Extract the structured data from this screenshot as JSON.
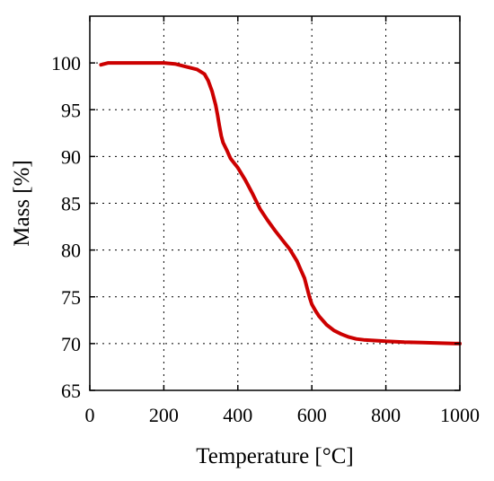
{
  "chart_data": {
    "type": "line",
    "xlabel": "Temperature [°C]",
    "ylabel": "Mass [%]",
    "xlim": [
      0,
      1000
    ],
    "ylim": [
      65,
      105
    ],
    "xticks": [
      0,
      200,
      400,
      600,
      800,
      1000
    ],
    "yticks": [
      65,
      70,
      75,
      80,
      85,
      90,
      95,
      100
    ],
    "grid": true,
    "colors": {
      "series": "#cc0000"
    },
    "series": [
      {
        "x": [
          30,
          50,
          100,
          150,
          200,
          230,
          260,
          290,
          310,
          320,
          330,
          340,
          345,
          350,
          355,
          360,
          370,
          380,
          390,
          400,
          420,
          440,
          460,
          480,
          500,
          520,
          540,
          560,
          570,
          580,
          590,
          595,
          600,
          610,
          620,
          640,
          660,
          680,
          700,
          720,
          740,
          760,
          780,
          800,
          850,
          900,
          950,
          1000
        ],
        "y": [
          99.8,
          100,
          100,
          100,
          100,
          99.9,
          99.6,
          99.3,
          98.8,
          98.1,
          97,
          95.5,
          94.5,
          93.3,
          92.2,
          91.5,
          90.7,
          89.8,
          89.3,
          88.8,
          87.5,
          86,
          84.4,
          83.2,
          82.1,
          81.1,
          80.1,
          78.8,
          77.9,
          77,
          75.5,
          74.8,
          74.2,
          73.5,
          72.9,
          72,
          71.4,
          71,
          70.7,
          70.5,
          70.4,
          70.35,
          70.3,
          70.25,
          70.15,
          70.1,
          70.05,
          70
        ]
      }
    ]
  }
}
